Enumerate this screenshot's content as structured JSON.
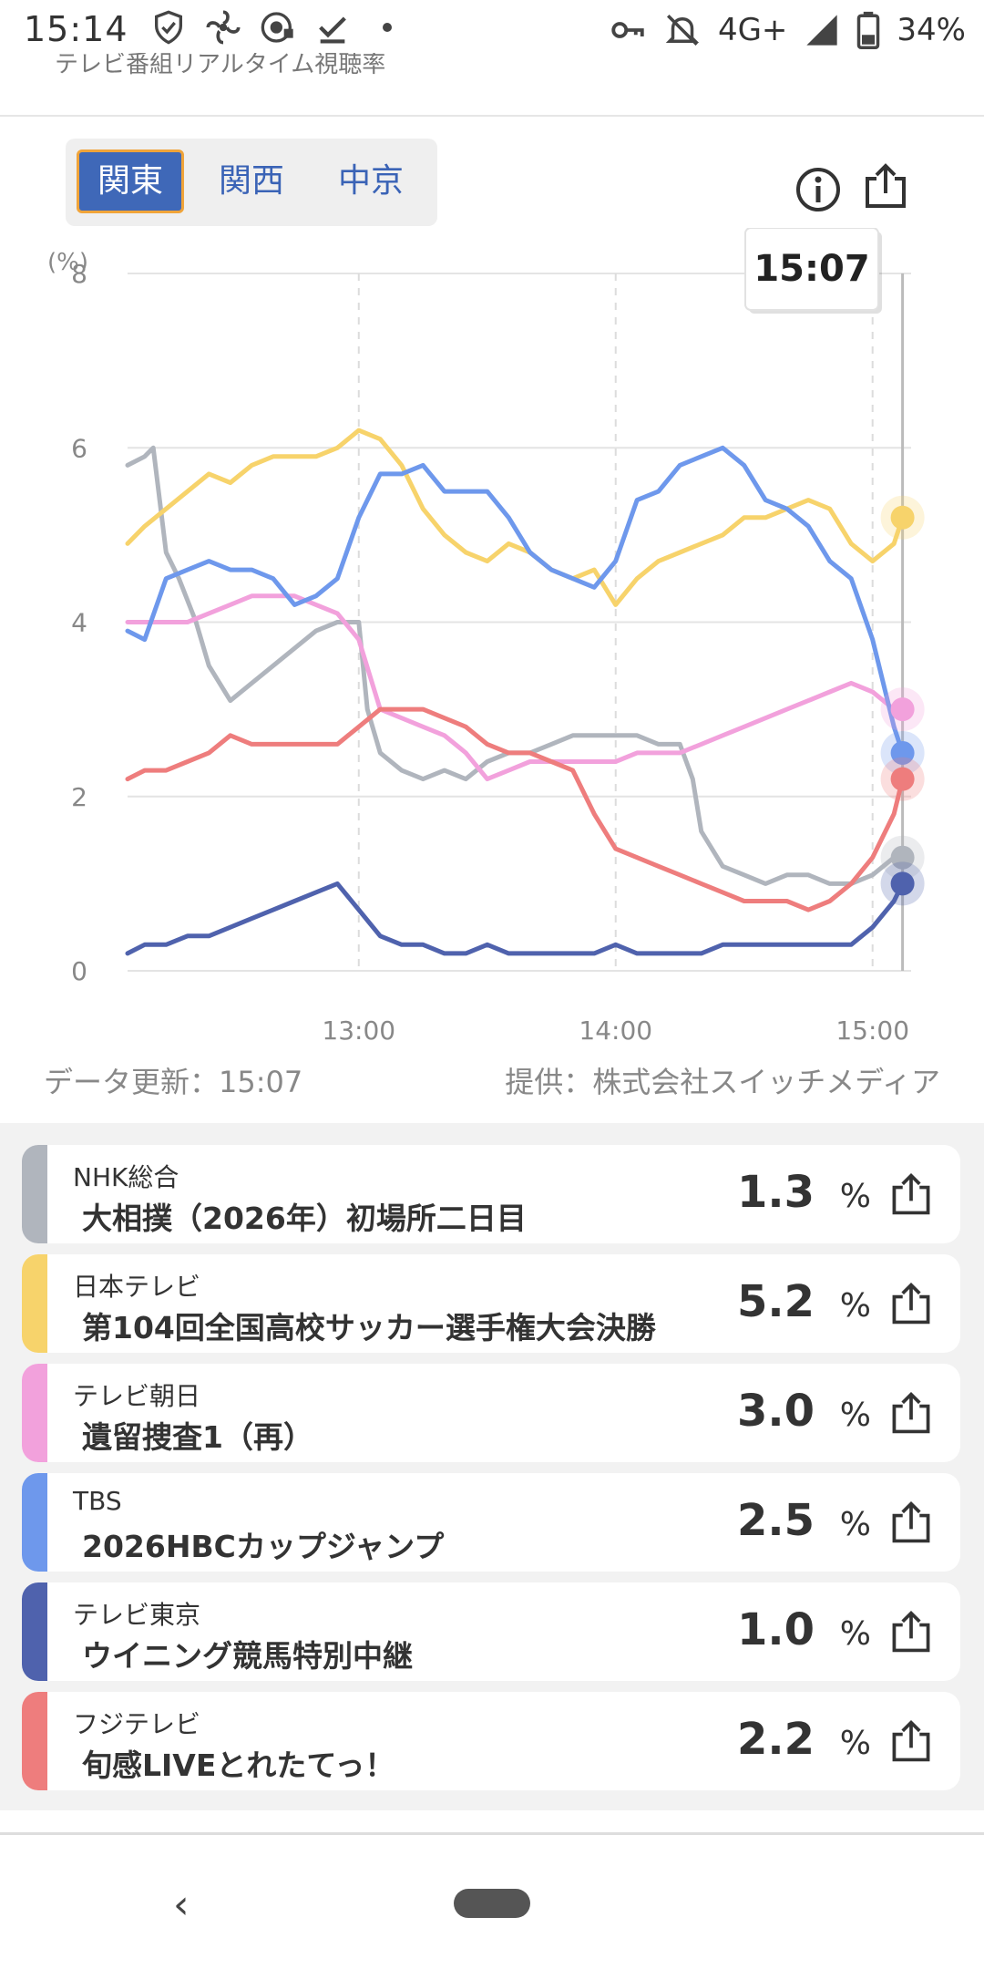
{
  "status_bar": {
    "time": "15:14",
    "left_icons": [
      "shield-icon",
      "pinwheel-icon",
      "radio-icon",
      "download-done-icon",
      "dot-icon"
    ],
    "network": "4G+",
    "battery": "34%"
  },
  "app": {
    "subtitle": "テレビ番組リアルタイム視聴率"
  },
  "region_tabs": [
    "関東",
    "関西",
    "中京"
  ],
  "active_region": "関東",
  "chart_data": {
    "type": "line",
    "ylabel": "(%)",
    "ylim": [
      0,
      8
    ],
    "yticks": [
      "0",
      "2",
      "4",
      "6",
      "8"
    ],
    "xticks": [
      "13:00",
      "14:00",
      "15:00"
    ],
    "x_range": [
      "12:06",
      "15:07"
    ],
    "tooltip": "15:07",
    "grid": true,
    "series": [
      {
        "name": "NHK総合",
        "color": "#b0b5bd",
        "x": [
          "12:06",
          "12:10",
          "12:12",
          "12:15",
          "12:18",
          "12:22",
          "12:25",
          "12:30",
          "12:35",
          "12:40",
          "12:45",
          "12:50",
          "12:55",
          "13:00",
          "13:02",
          "13:05",
          "13:10",
          "13:15",
          "13:20",
          "13:25",
          "13:30",
          "13:35",
          "13:40",
          "13:45",
          "13:50",
          "13:55",
          "14:00",
          "14:05",
          "14:10",
          "14:15",
          "14:18",
          "14:20",
          "14:25",
          "14:30",
          "14:35",
          "14:40",
          "14:45",
          "14:50",
          "14:55",
          "15:00",
          "15:05",
          "15:07"
        ],
        "values": [
          5.8,
          5.9,
          6.0,
          4.8,
          4.5,
          4.0,
          3.5,
          3.1,
          3.3,
          3.5,
          3.7,
          3.9,
          4.0,
          4.0,
          3.0,
          2.5,
          2.3,
          2.2,
          2.3,
          2.2,
          2.4,
          2.5,
          2.5,
          2.6,
          2.7,
          2.7,
          2.7,
          2.7,
          2.6,
          2.6,
          2.2,
          1.6,
          1.2,
          1.1,
          1.0,
          1.1,
          1.1,
          1.0,
          1.0,
          1.1,
          1.3,
          1.3
        ]
      },
      {
        "name": "日本テレビ",
        "color": "#f7d36b",
        "x": [
          "12:06",
          "12:10",
          "12:15",
          "12:20",
          "12:25",
          "12:30",
          "12:35",
          "12:40",
          "12:45",
          "12:50",
          "12:55",
          "13:00",
          "13:05",
          "13:10",
          "13:15",
          "13:20",
          "13:25",
          "13:30",
          "13:35",
          "13:40",
          "13:45",
          "13:50",
          "13:55",
          "14:00",
          "14:05",
          "14:10",
          "14:15",
          "14:20",
          "14:25",
          "14:30",
          "14:35",
          "14:40",
          "14:45",
          "14:50",
          "14:55",
          "15:00",
          "15:05",
          "15:07"
        ],
        "values": [
          4.9,
          5.1,
          5.3,
          5.5,
          5.7,
          5.6,
          5.8,
          5.9,
          5.9,
          5.9,
          6.0,
          6.2,
          6.1,
          5.8,
          5.3,
          5.0,
          4.8,
          4.7,
          4.9,
          4.8,
          4.6,
          4.5,
          4.6,
          4.2,
          4.5,
          4.7,
          4.8,
          4.9,
          5.0,
          5.2,
          5.2,
          5.3,
          5.4,
          5.3,
          4.9,
          4.7,
          4.9,
          5.2
        ]
      },
      {
        "name": "テレビ朝日",
        "color": "#f2a1dc",
        "x": [
          "12:06",
          "12:10",
          "12:15",
          "12:20",
          "12:25",
          "12:30",
          "12:35",
          "12:40",
          "12:45",
          "12:50",
          "12:55",
          "13:00",
          "13:05",
          "13:10",
          "13:15",
          "13:20",
          "13:25",
          "13:30",
          "13:35",
          "13:40",
          "13:45",
          "13:50",
          "13:55",
          "14:00",
          "14:05",
          "14:10",
          "14:15",
          "14:20",
          "14:25",
          "14:30",
          "14:35",
          "14:40",
          "14:45",
          "14:50",
          "14:55",
          "15:00",
          "15:05",
          "15:07"
        ],
        "values": [
          4.0,
          4.0,
          4.0,
          4.0,
          4.1,
          4.2,
          4.3,
          4.3,
          4.3,
          4.2,
          4.1,
          3.8,
          3.0,
          2.9,
          2.8,
          2.7,
          2.5,
          2.2,
          2.3,
          2.4,
          2.4,
          2.4,
          2.4,
          2.4,
          2.5,
          2.5,
          2.5,
          2.6,
          2.7,
          2.8,
          2.9,
          3.0,
          3.1,
          3.2,
          3.3,
          3.2,
          3.0,
          3.0
        ]
      },
      {
        "name": "TBS",
        "color": "#6e98ec",
        "x": [
          "12:06",
          "12:10",
          "12:15",
          "12:20",
          "12:25",
          "12:30",
          "12:35",
          "12:40",
          "12:45",
          "12:50",
          "12:55",
          "13:00",
          "13:05",
          "13:10",
          "13:15",
          "13:20",
          "13:25",
          "13:30",
          "13:35",
          "13:40",
          "13:45",
          "13:50",
          "13:55",
          "14:00",
          "14:05",
          "14:10",
          "14:15",
          "14:20",
          "14:25",
          "14:30",
          "14:35",
          "14:40",
          "14:45",
          "14:50",
          "14:55",
          "15:00",
          "15:05",
          "15:07"
        ],
        "values": [
          3.9,
          3.8,
          4.5,
          4.6,
          4.7,
          4.6,
          4.6,
          4.5,
          4.2,
          4.3,
          4.5,
          5.2,
          5.7,
          5.7,
          5.8,
          5.5,
          5.5,
          5.5,
          5.2,
          4.8,
          4.6,
          4.5,
          4.4,
          4.7,
          5.4,
          5.5,
          5.8,
          5.9,
          6.0,
          5.8,
          5.4,
          5.3,
          5.1,
          4.7,
          4.5,
          3.8,
          2.8,
          2.5
        ]
      },
      {
        "name": "テレビ東京",
        "color": "#4f62ad",
        "x": [
          "12:06",
          "12:10",
          "12:15",
          "12:20",
          "12:25",
          "12:30",
          "12:35",
          "12:40",
          "12:45",
          "12:50",
          "12:55",
          "13:00",
          "13:05",
          "13:10",
          "13:15",
          "13:20",
          "13:25",
          "13:30",
          "13:35",
          "13:40",
          "13:45",
          "13:50",
          "13:55",
          "14:00",
          "14:05",
          "14:10",
          "14:15",
          "14:20",
          "14:25",
          "14:30",
          "14:35",
          "14:40",
          "14:45",
          "14:50",
          "14:55",
          "15:00",
          "15:05",
          "15:07"
        ],
        "values": [
          0.2,
          0.3,
          0.3,
          0.4,
          0.4,
          0.5,
          0.6,
          0.7,
          0.8,
          0.9,
          1.0,
          0.7,
          0.4,
          0.3,
          0.3,
          0.2,
          0.2,
          0.3,
          0.2,
          0.2,
          0.2,
          0.2,
          0.2,
          0.3,
          0.2,
          0.2,
          0.2,
          0.2,
          0.3,
          0.3,
          0.3,
          0.3,
          0.3,
          0.3,
          0.3,
          0.5,
          0.8,
          1.0
        ]
      },
      {
        "name": "フジテレビ",
        "color": "#ee7d7d",
        "x": [
          "12:06",
          "12:10",
          "12:15",
          "12:20",
          "12:25",
          "12:30",
          "12:35",
          "12:40",
          "12:45",
          "12:50",
          "12:55",
          "13:00",
          "13:05",
          "13:10",
          "13:15",
          "13:20",
          "13:25",
          "13:30",
          "13:35",
          "13:40",
          "13:45",
          "13:50",
          "13:55",
          "14:00",
          "14:05",
          "14:10",
          "14:15",
          "14:20",
          "14:25",
          "14:30",
          "14:35",
          "14:40",
          "14:45",
          "14:50",
          "14:55",
          "15:00",
          "15:05",
          "15:07"
        ],
        "values": [
          2.2,
          2.3,
          2.3,
          2.4,
          2.5,
          2.7,
          2.6,
          2.6,
          2.6,
          2.6,
          2.6,
          2.8,
          3.0,
          3.0,
          3.0,
          2.9,
          2.8,
          2.6,
          2.5,
          2.5,
          2.4,
          2.3,
          1.8,
          1.4,
          1.3,
          1.2,
          1.1,
          1.0,
          0.9,
          0.8,
          0.8,
          0.8,
          0.7,
          0.8,
          1.0,
          1.3,
          1.8,
          2.2
        ]
      }
    ]
  },
  "meta": {
    "updated": "データ更新：15:07",
    "provider": "提供：株式会社スイッチメディア"
  },
  "channels": [
    {
      "channel": "NHK総合",
      "program": "大相撲（2026年）初場所二日目",
      "rating": "1.3",
      "unit": "%",
      "color": "#b0b5bd"
    },
    {
      "channel": "日本テレビ",
      "program": "第104回全国高校サッカー選手権大会決勝",
      "rating": "5.2",
      "unit": "%",
      "color": "#f7d36b"
    },
    {
      "channel": "テレビ朝日",
      "program": "遺留捜査1（再）",
      "rating": "3.0",
      "unit": "%",
      "color": "#f2a1dc"
    },
    {
      "channel": "TBS",
      "program": "2026HBCカップジャンプ",
      "rating": "2.5",
      "unit": "%",
      "color": "#6e98ec"
    },
    {
      "channel": "テレビ東京",
      "program": "ウイニング競馬特別中継",
      "rating": "1.0",
      "unit": "%",
      "color": "#4f62ad"
    },
    {
      "channel": "フジテレビ",
      "program": "旬感LIVEとれたてっ！",
      "rating": "2.2",
      "unit": "%",
      "color": "#ee7d7d"
    }
  ]
}
